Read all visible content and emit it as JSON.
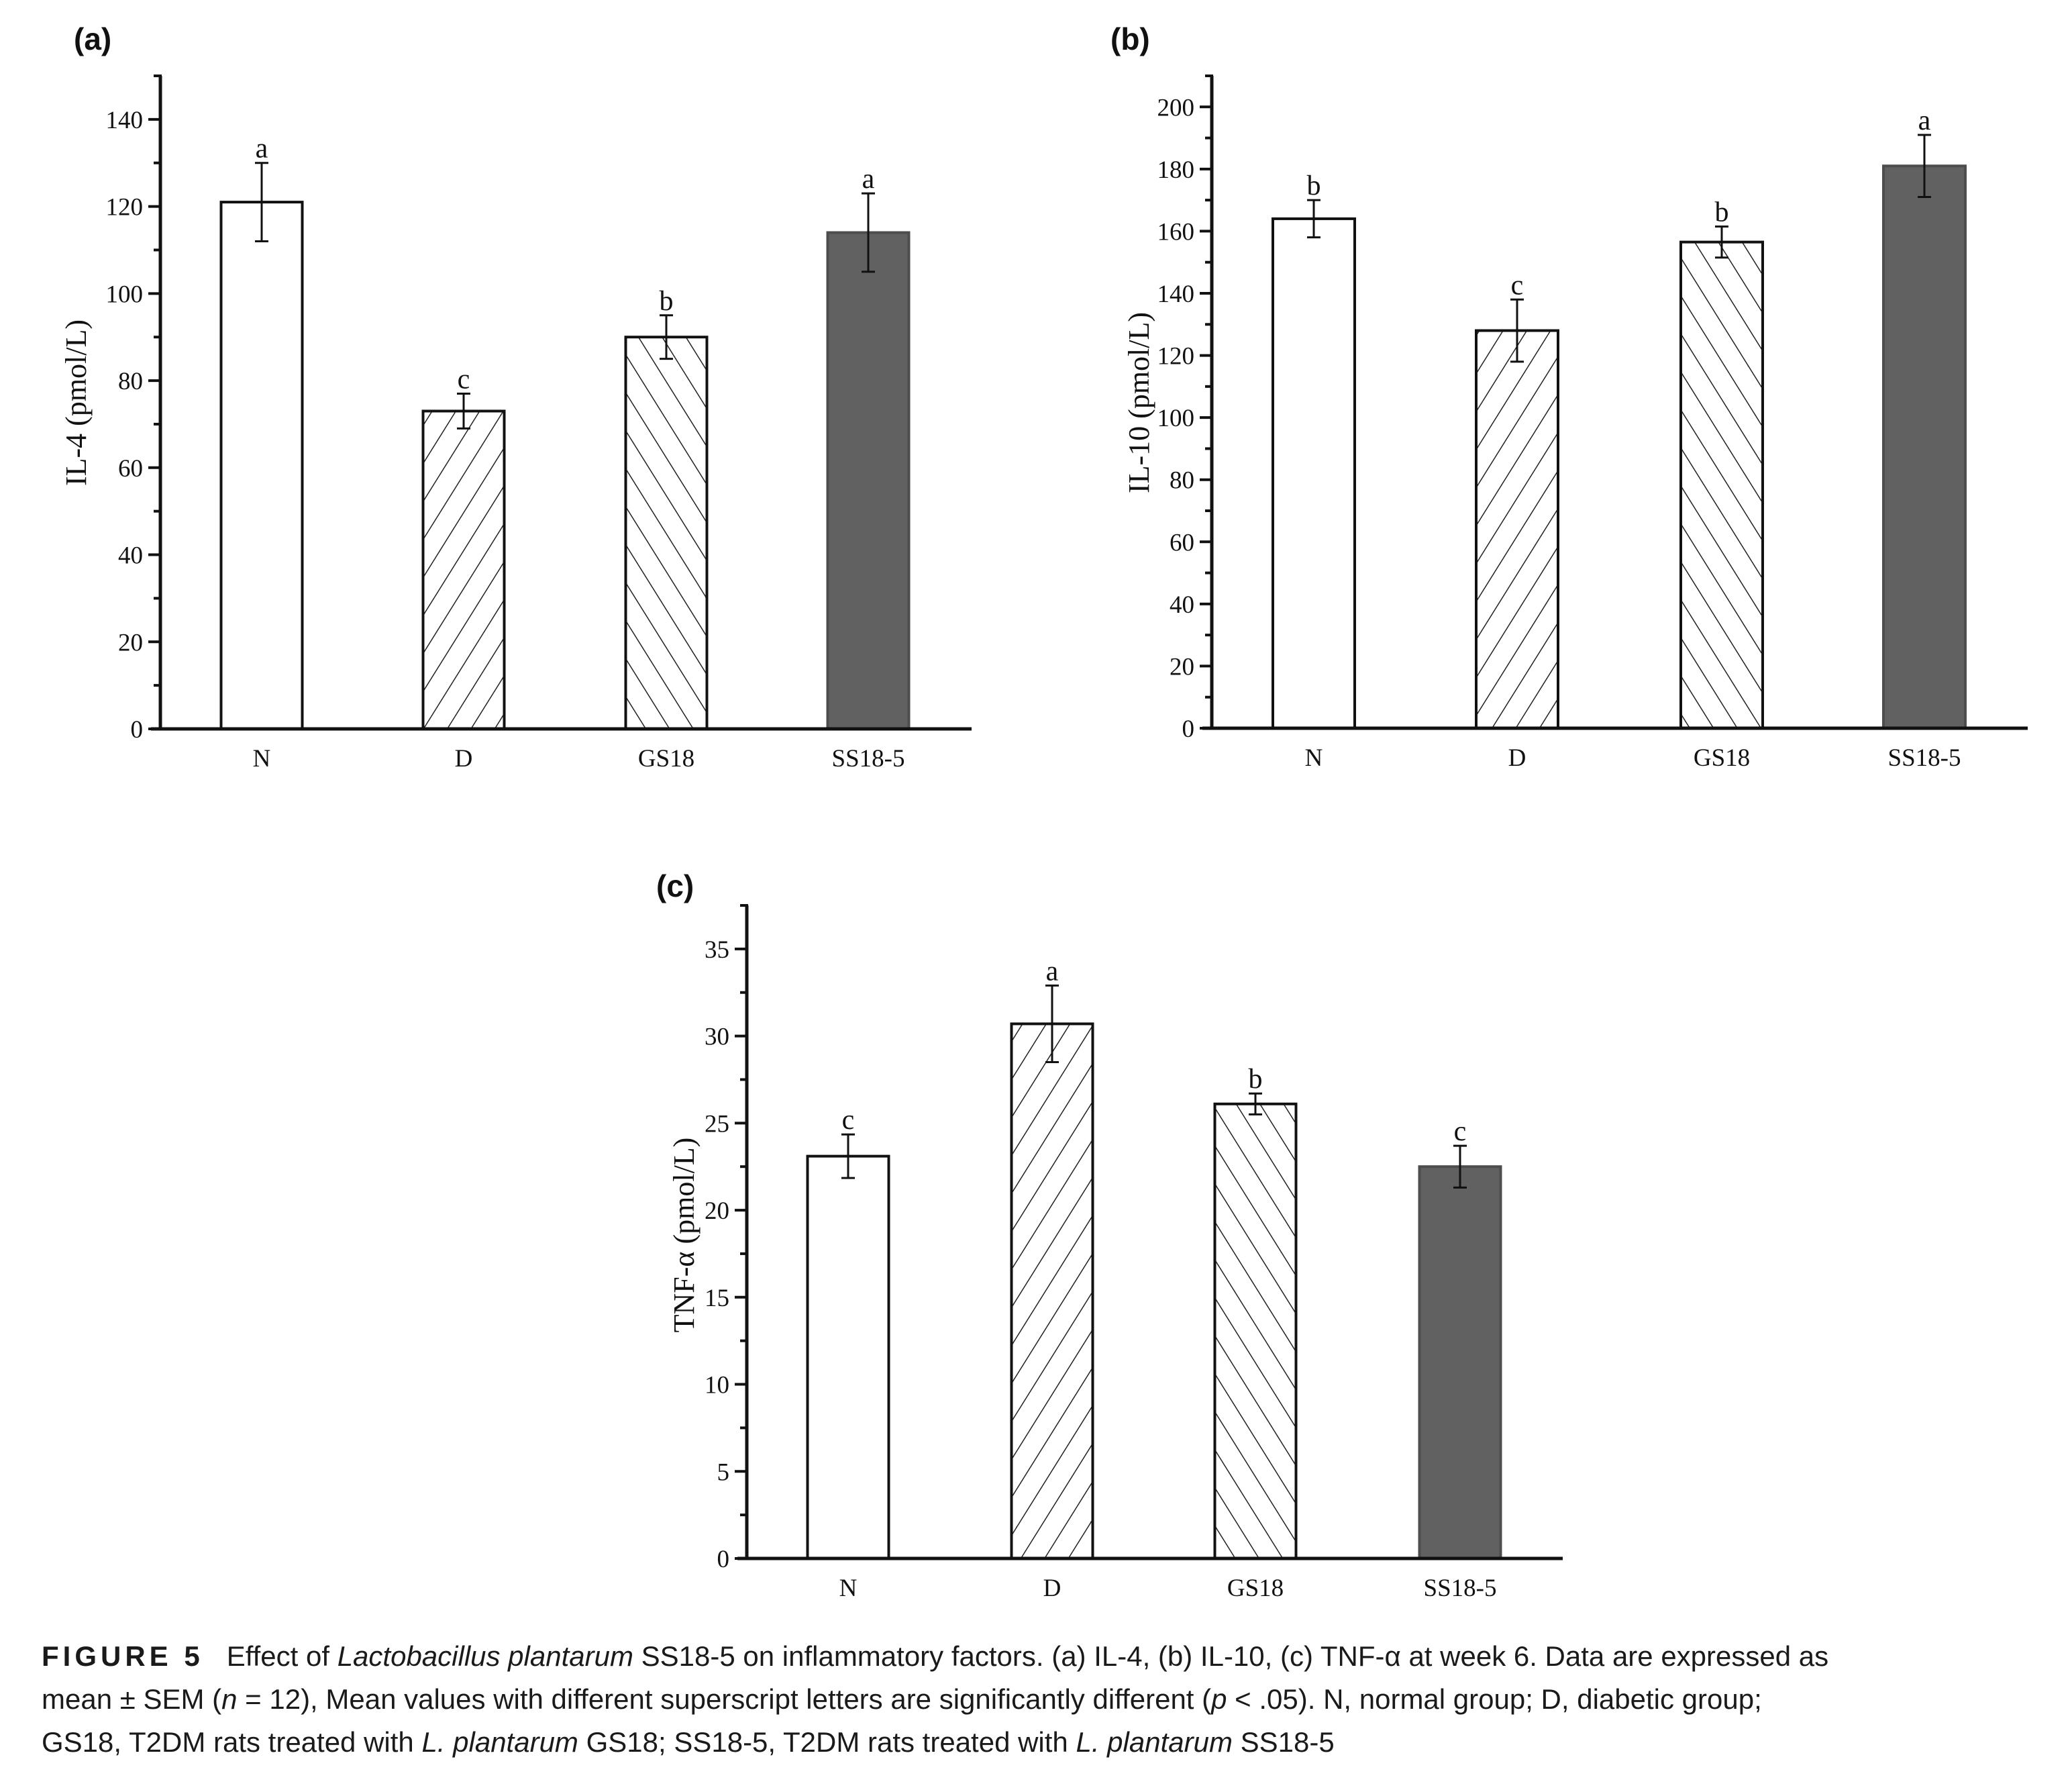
{
  "chart_data": [
    {
      "panel": "(a)",
      "type": "bar",
      "title": "",
      "xlabel": "",
      "ylabel": "IL-4 (pmol/L)",
      "categories": [
        "N",
        "D",
        "GS18",
        "SS18-5"
      ],
      "values": [
        121,
        73,
        90,
        114
      ],
      "error": [
        9,
        4,
        5,
        9
      ],
      "significance": [
        "a",
        "c",
        "b",
        "a"
      ],
      "ylim": [
        0,
        150
      ],
      "yticks": [
        0,
        20,
        40,
        60,
        80,
        100,
        120,
        140
      ],
      "ytick_labels": [
        "0",
        "20",
        "40",
        "60",
        "80",
        "100",
        "120",
        "140"
      ],
      "minor_tick_step": 10,
      "bar_styles": [
        "open",
        "hatch-forward",
        "hatch-back",
        "solid"
      ],
      "grid": false,
      "legend": "none"
    },
    {
      "panel": "(b)",
      "type": "bar",
      "title": "",
      "xlabel": "",
      "ylabel": "IL-10 (pmol/L)",
      "categories": [
        "N",
        "D",
        "GS18",
        "SS18-5"
      ],
      "values": [
        164,
        128,
        156.5,
        181
      ],
      "error": [
        6,
        10,
        5,
        10
      ],
      "significance": [
        "b",
        "c",
        "b",
        "a"
      ],
      "ylim": [
        0,
        210
      ],
      "yticks": [
        0,
        20,
        40,
        60,
        80,
        100,
        120,
        140,
        160,
        180,
        200
      ],
      "ytick_labels": [
        "0",
        "20",
        "40",
        "60",
        "80",
        "100",
        "120",
        "140",
        "160",
        "180",
        "200"
      ],
      "minor_tick_step": 10,
      "bar_styles": [
        "open",
        "hatch-forward",
        "hatch-back",
        "solid"
      ],
      "grid": false,
      "legend": "none"
    },
    {
      "panel": "(c)",
      "type": "bar",
      "title": "",
      "xlabel": "",
      "ylabel": "TNF-α (pmol/L)",
      "categories": [
        "N",
        "D",
        "GS18",
        "SS18-5"
      ],
      "values": [
        23.1,
        30.7,
        26.1,
        22.5
      ],
      "error": [
        1.25,
        2.2,
        0.6,
        1.2
      ],
      "significance": [
        "c",
        "a",
        "b",
        "c"
      ],
      "ylim": [
        0,
        37.5
      ],
      "yticks": [
        0,
        5,
        10,
        15,
        20,
        25,
        30,
        35
      ],
      "ytick_labels": [
        "0",
        "5",
        "10",
        "15",
        "20",
        "25",
        "30",
        "35"
      ],
      "minor_tick_step": 2.5,
      "bar_styles": [
        "open",
        "hatch-forward",
        "hatch-back",
        "solid"
      ],
      "grid": false,
      "legend": "none"
    }
  ],
  "colors": {
    "axis": "#111111",
    "bar_outline": "#111111",
    "bar_open_fill": "#ffffff",
    "bar_solid_fill": "#616161",
    "hatch": "#222222"
  },
  "caption": {
    "label": "FIGURE 5",
    "line1": {
      "t1": "Effect of ",
      "i1": "Lactobacillus plantarum",
      "t2": " SS18-5 on inflammatory factors. (a) IL-4, (b) IL-10, (c) TNF-α at week 6. Data are expressed as"
    },
    "line2": {
      "t1": "mean ± SEM (",
      "i1": "n",
      "t2": " = 12), Mean values with different superscript letters are significantly different (",
      "i2": "p",
      "t3": " < .05). N, normal group; D, diabetic group;"
    },
    "line3": {
      "t1": "GS18, T2DM rats treated with ",
      "i1": "L. plantarum",
      "t2": " GS18; SS18-5, T2DM rats treated with ",
      "i2": "L. plantarum",
      "t3": " SS18-5"
    }
  }
}
